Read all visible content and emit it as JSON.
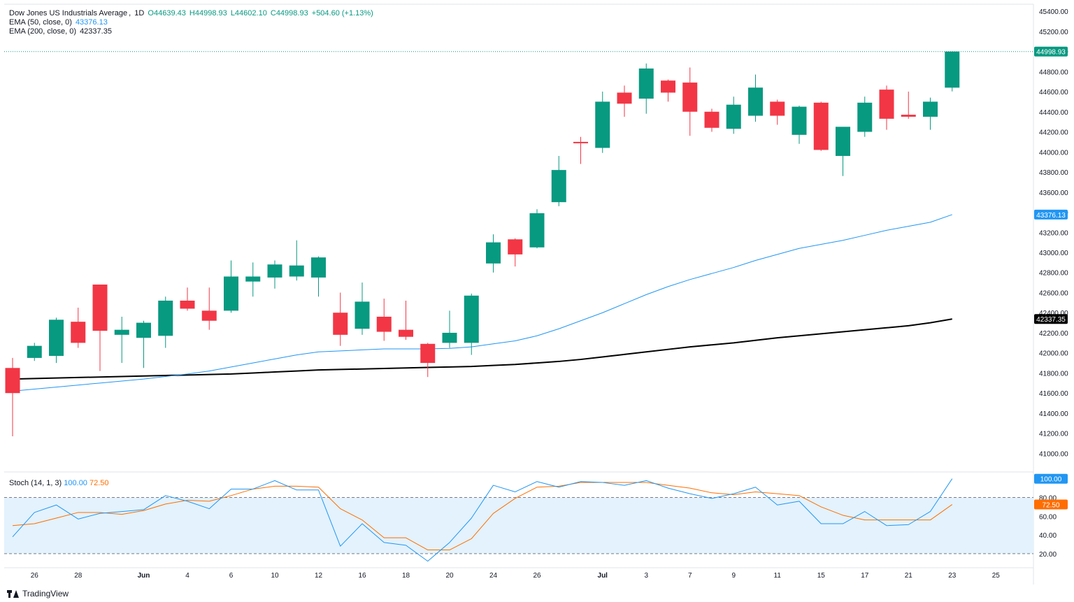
{
  "header": {
    "symbol": "Dow Jones US Industrials Average",
    "interval": "1D",
    "ohlc": {
      "open": "O44639.43",
      "high": "H44998.93",
      "low": "L44602.10",
      "close": "C44998.93",
      "change": "+504.60 (+1.13%)"
    }
  },
  "indicators": {
    "ema50": {
      "label": "EMA (50, close, 0)",
      "value": "43376.13",
      "color": "#2196f3"
    },
    "ema200": {
      "label": "EMA (200, close, 0)",
      "value": "42337.35",
      "color": "#000000"
    },
    "stoch": {
      "label": "Stoch (14, 1, 3)",
      "k_value": "100.00",
      "d_value": "72.50",
      "k_color": "#2196f3",
      "d_color": "#ff6d00"
    }
  },
  "price_badge": {
    "value": "44998.93",
    "color": "#089981"
  },
  "colors": {
    "up": "#089981",
    "down": "#f23645",
    "band": "#e3f2fd"
  },
  "branding": {
    "text": "TradingView"
  },
  "chart_data": {
    "type": "candlestick",
    "price_axis": {
      "range": [
        40850,
        45470
      ],
      "ticks": [
        "45400.00",
        "45200.00",
        "45000.00",
        "44800.00",
        "44600.00",
        "44400.00",
        "44200.00",
        "44000.00",
        "43800.00",
        "43600.00",
        "43400.00",
        "43200.00",
        "43000.00",
        "42800.00",
        "42600.00",
        "42400.00",
        "42200.00",
        "42000.00",
        "41800.00",
        "41600.00",
        "41400.00",
        "41200.00",
        "41000.00"
      ]
    },
    "stoch_axis": {
      "range": [
        8,
        105
      ],
      "ticks": [
        "100.00",
        "80.00",
        "60.00",
        "40.00",
        "20.00"
      ],
      "bands": [
        20,
        80
      ]
    },
    "date_axis": [
      {
        "label": "26",
        "slot": 1
      },
      {
        "label": "28",
        "slot": 3
      },
      {
        "label": "Jun",
        "slot": 6
      },
      {
        "label": "4",
        "slot": 8
      },
      {
        "label": "6",
        "slot": 10
      },
      {
        "label": "10",
        "slot": 12
      },
      {
        "label": "12",
        "slot": 14
      },
      {
        "label": "16",
        "slot": 16
      },
      {
        "label": "18",
        "slot": 18
      },
      {
        "label": "20",
        "slot": 20
      },
      {
        "label": "24",
        "slot": 22
      },
      {
        "label": "26",
        "slot": 24
      },
      {
        "label": "Jul",
        "slot": 27
      },
      {
        "label": "3",
        "slot": 29
      },
      {
        "label": "7",
        "slot": 31
      },
      {
        "label": "9",
        "slot": 33
      },
      {
        "label": "11",
        "slot": 35
      },
      {
        "label": "15",
        "slot": 37
      },
      {
        "label": "17",
        "slot": 39
      },
      {
        "label": "21",
        "slot": 41
      },
      {
        "label": "23",
        "slot": 43
      },
      {
        "label": "25",
        "slot": 45
      }
    ],
    "candles": [
      {
        "o": 41850,
        "h": 41950,
        "l": 41170,
        "c": 41600
      },
      {
        "o": 41950,
        "h": 42100,
        "l": 41920,
        "c": 42070
      },
      {
        "o": 41970,
        "h": 42350,
        "l": 41900,
        "c": 42330
      },
      {
        "o": 42310,
        "h": 42450,
        "l": 42050,
        "c": 42100
      },
      {
        "o": 42680,
        "h": 42680,
        "l": 41820,
        "c": 42220
      },
      {
        "o": 42180,
        "h": 42360,
        "l": 41900,
        "c": 42230
      },
      {
        "o": 42150,
        "h": 42320,
        "l": 41850,
        "c": 42300
      },
      {
        "o": 42170,
        "h": 42560,
        "l": 42050,
        "c": 42520
      },
      {
        "o": 42520,
        "h": 42650,
        "l": 42420,
        "c": 42440
      },
      {
        "o": 42420,
        "h": 42650,
        "l": 42230,
        "c": 42320
      },
      {
        "o": 42420,
        "h": 42920,
        "l": 42400,
        "c": 42760
      },
      {
        "o": 42710,
        "h": 42900,
        "l": 42560,
        "c": 42760
      },
      {
        "o": 42750,
        "h": 42920,
        "l": 42640,
        "c": 42880
      },
      {
        "o": 42760,
        "h": 43120,
        "l": 42720,
        "c": 42870
      },
      {
        "o": 42750,
        "h": 42960,
        "l": 42560,
        "c": 42950
      },
      {
        "o": 42400,
        "h": 42600,
        "l": 42070,
        "c": 42180
      },
      {
        "o": 42240,
        "h": 42700,
        "l": 42180,
        "c": 42510
      },
      {
        "o": 42360,
        "h": 42540,
        "l": 42120,
        "c": 42210
      },
      {
        "o": 42230,
        "h": 42520,
        "l": 42130,
        "c": 42160
      },
      {
        "o": 42090,
        "h": 42100,
        "l": 41760,
        "c": 41900
      },
      {
        "o": 42100,
        "h": 42420,
        "l": 42050,
        "c": 42200
      },
      {
        "o": 42100,
        "h": 42590,
        "l": 41980,
        "c": 42570
      },
      {
        "o": 42890,
        "h": 43180,
        "l": 42800,
        "c": 43100
      },
      {
        "o": 43130,
        "h": 43140,
        "l": 42860,
        "c": 42980
      },
      {
        "o": 43050,
        "h": 43430,
        "l": 43040,
        "c": 43390
      },
      {
        "o": 43500,
        "h": 43960,
        "l": 43460,
        "c": 43820
      },
      {
        "o": 44100,
        "h": 44150,
        "l": 43880,
        "c": 44090
      },
      {
        "o": 44040,
        "h": 44600,
        "l": 43990,
        "c": 44500
      },
      {
        "o": 44590,
        "h": 44660,
        "l": 44350,
        "c": 44480
      },
      {
        "o": 44530,
        "h": 44880,
        "l": 44380,
        "c": 44830
      },
      {
        "o": 44710,
        "h": 44720,
        "l": 44500,
        "c": 44590
      },
      {
        "o": 44690,
        "h": 44840,
        "l": 44160,
        "c": 44400
      },
      {
        "o": 44400,
        "h": 44430,
        "l": 44200,
        "c": 44240
      },
      {
        "o": 44230,
        "h": 44550,
        "l": 44180,
        "c": 44470
      },
      {
        "o": 44360,
        "h": 44770,
        "l": 44300,
        "c": 44640
      },
      {
        "o": 44500,
        "h": 44520,
        "l": 44270,
        "c": 44360
      },
      {
        "o": 44170,
        "h": 44460,
        "l": 44080,
        "c": 44450
      },
      {
        "o": 44490,
        "h": 44500,
        "l": 44010,
        "c": 44020
      },
      {
        "o": 43960,
        "h": 44240,
        "l": 43760,
        "c": 44250
      },
      {
        "o": 44200,
        "h": 44550,
        "l": 44150,
        "c": 44490
      },
      {
        "o": 44620,
        "h": 44660,
        "l": 44220,
        "c": 44330
      },
      {
        "o": 44370,
        "h": 44600,
        "l": 44330,
        "c": 44350
      },
      {
        "o": 44350,
        "h": 44540,
        "l": 44220,
        "c": 44500
      },
      {
        "o": 44639.43,
        "h": 44998.93,
        "l": 44602.1,
        "c": 44998.93
      }
    ],
    "ema50": [
      41620,
      41640,
      41660,
      41680,
      41700,
      41720,
      41740,
      41765,
      41790,
      41820,
      41860,
      41900,
      41940,
      41980,
      42010,
      42020,
      42030,
      42040,
      42040,
      42040,
      42045,
      42060,
      42090,
      42120,
      42170,
      42240,
      42320,
      42400,
      42490,
      42580,
      42660,
      42730,
      42790,
      42850,
      42920,
      42980,
      43040,
      43080,
      43120,
      43170,
      43220,
      43260,
      43300,
      43376.13
    ],
    "ema200": [
      41740,
      41745,
      41750,
      41755,
      41760,
      41765,
      41770,
      41775,
      41780,
      41785,
      41790,
      41800,
      41810,
      41820,
      41830,
      41835,
      41840,
      41845,
      41850,
      41855,
      41860,
      41865,
      41875,
      41885,
      41900,
      41915,
      41935,
      41960,
      41985,
      42010,
      42035,
      42060,
      42080,
      42100,
      42125,
      42150,
      42170,
      42190,
      42210,
      42230,
      42250,
      42270,
      42300,
      42337.35
    ],
    "stoch_k": [
      38,
      64,
      72,
      57,
      63,
      65,
      67,
      82,
      76,
      68,
      89,
      89,
      98,
      88,
      88,
      28,
      52,
      32,
      29,
      12,
      32,
      58,
      93,
      86,
      97,
      91,
      97,
      96,
      93,
      98,
      90,
      84,
      79,
      84,
      91,
      72,
      76,
      52,
      52,
      65,
      50,
      51,
      65,
      100
    ],
    "stoch_d": [
      50,
      52,
      58,
      64,
      64,
      62,
      66,
      73,
      77,
      76,
      82,
      89,
      92,
      92,
      91,
      68,
      56,
      37,
      37,
      24,
      24,
      36,
      63,
      79,
      91,
      92,
      96,
      96,
      96,
      96,
      93,
      90,
      85,
      83,
      86,
      84,
      82,
      70,
      61,
      56,
      56,
      56,
      56,
      72.5
    ]
  }
}
